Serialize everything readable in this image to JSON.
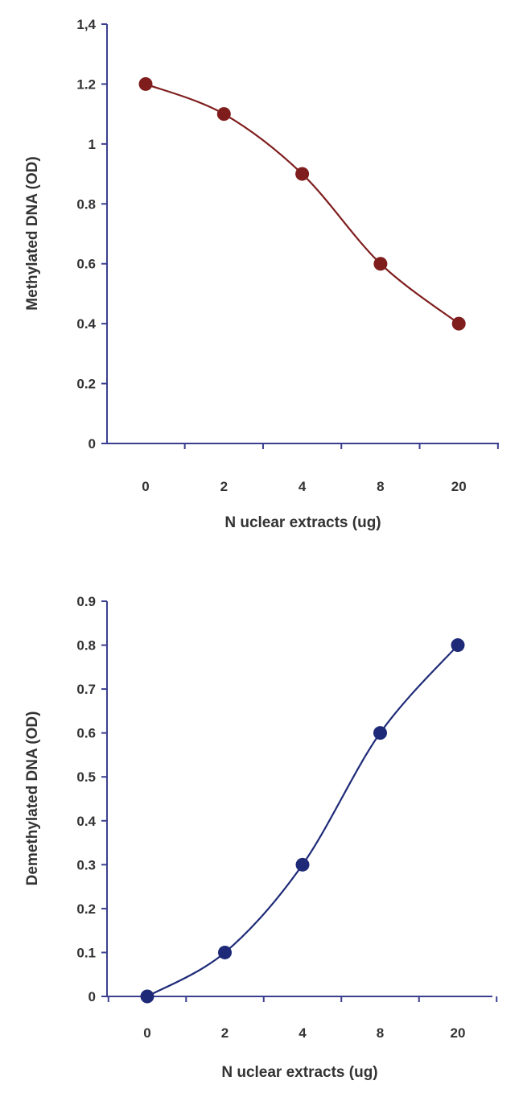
{
  "chart_data": [
    {
      "type": "line",
      "smooth": true,
      "categories": [
        "0",
        "2",
        "4",
        "8",
        "20"
      ],
      "series": [
        {
          "values": [
            1.2,
            1.1,
            0.9,
            0.6,
            0.4
          ],
          "color": "#7f1d1d"
        }
      ],
      "ylim": [
        0,
        1.4
      ],
      "yticks": [
        "0",
        "0.2",
        "0.4",
        "0.6",
        "0.8",
        "1",
        "1.2",
        "1,4"
      ],
      "xlabel": "N uclear extracts (ug)",
      "ylabel": "Methylated DNA (OD)",
      "axis_color": "#3b3f8f",
      "grid": false,
      "legend": "none"
    },
    {
      "type": "line",
      "smooth": true,
      "categories": [
        "0",
        "2",
        "4",
        "8",
        "20"
      ],
      "series": [
        {
          "values": [
            0,
            0.1,
            0.3,
            0.6,
            0.8
          ],
          "color": "#1e2a78"
        }
      ],
      "ylim": [
        0,
        0.9
      ],
      "yticks": [
        "0",
        "0.1",
        "0.2",
        "0.3",
        "0.4",
        "0.5",
        "0.6",
        "0.7",
        "0.8",
        "0.9"
      ],
      "xlabel": "N uclear extracts (ug)",
      "ylabel": "Demethylated DNA (OD)",
      "axis_color": "#3b3f8f",
      "grid": false,
      "legend": "none"
    }
  ]
}
